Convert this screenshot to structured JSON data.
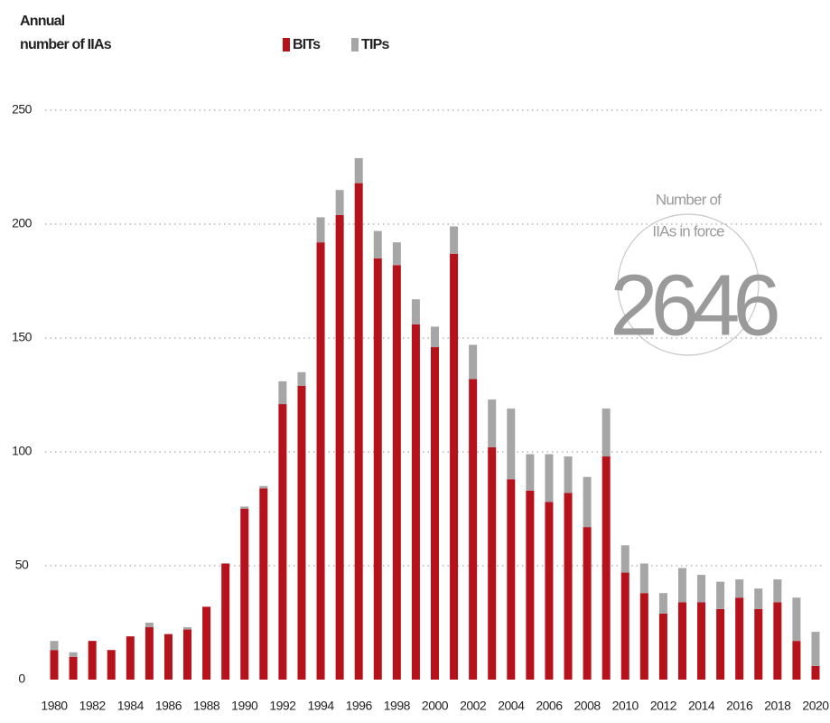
{
  "chart_data": {
    "type": "stacked_bar",
    "y_axis_label": [
      "Annual",
      "number of IIAs"
    ],
    "categories": [
      "1980",
      null,
      "1982",
      null,
      "1984",
      null,
      "1986",
      null,
      "1988",
      null,
      "1990",
      null,
      "1992",
      null,
      "1994",
      null,
      "1996",
      null,
      "1998",
      null,
      "2000",
      null,
      "2002",
      null,
      "2004",
      null,
      "2006",
      null,
      "2008",
      null,
      "2010",
      null,
      "2012",
      null,
      "2014",
      null,
      "2016",
      null,
      "2018",
      null,
      "2020"
    ],
    "series": [
      {
        "name": "BITs",
        "color": "#b5121b",
        "values": [
          13,
          10,
          17,
          13,
          19,
          23,
          20,
          22,
          32,
          51,
          75,
          84,
          121,
          129,
          192,
          204,
          218,
          185,
          182,
          156,
          146,
          187,
          132,
          102,
          88,
          83,
          78,
          82,
          67,
          98,
          47,
          38,
          29,
          34,
          34,
          31,
          36,
          31,
          34,
          17,
          6
        ]
      },
      {
        "name": "TIPs",
        "color": "#a6a6a6",
        "values": [
          4,
          2,
          0,
          0,
          0,
          2,
          0,
          1,
          0,
          0,
          1,
          1,
          10,
          6,
          11,
          11,
          11,
          12,
          10,
          11,
          9,
          12,
          15,
          21,
          31,
          16,
          21,
          16,
          22,
          21,
          12,
          13,
          9,
          15,
          12,
          12,
          8,
          9,
          10,
          19,
          15
        ]
      }
    ],
    "ylim": [
      0,
      250
    ],
    "yticks": [
      0,
      50,
      100,
      150,
      200,
      250
    ],
    "grid": true,
    "annotation": {
      "lines": [
        "Number of",
        "IIAs in force"
      ],
      "value": 2646
    }
  }
}
